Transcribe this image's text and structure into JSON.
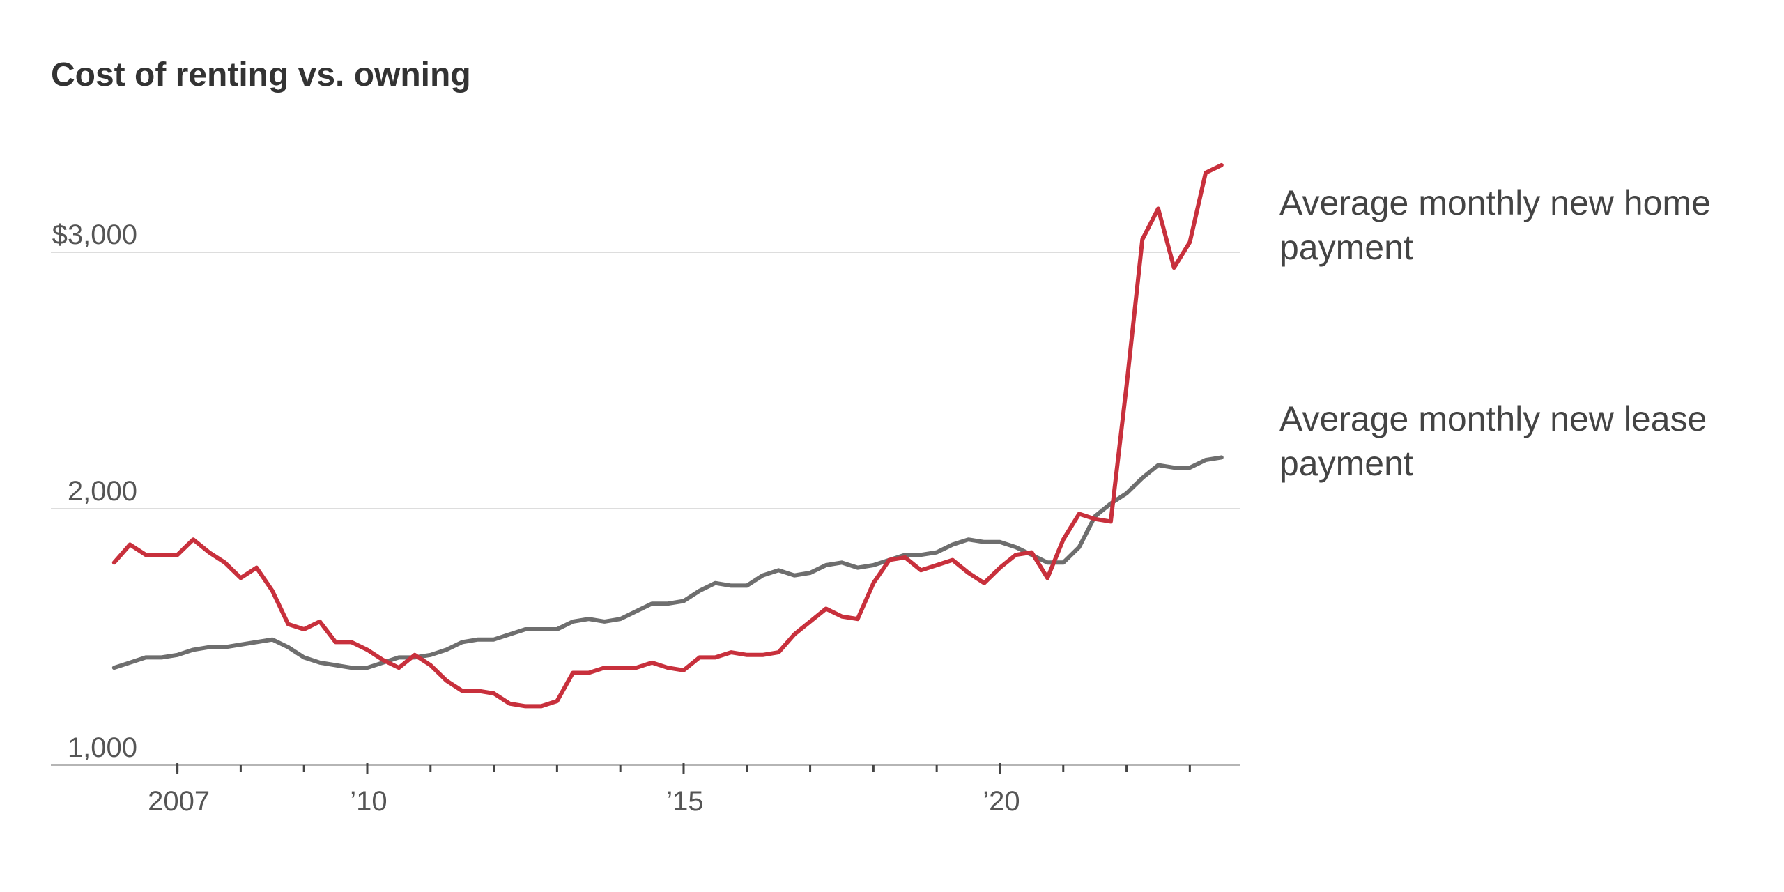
{
  "chart_data": {
    "type": "line",
    "title": "Cost of renting vs. owning",
    "xlabel": "",
    "ylabel": "",
    "xlim": [
      2005.0,
      2023.8
    ],
    "ylim": [
      1000,
      3400
    ],
    "y_ticks": [
      {
        "value": 3000,
        "label": "$3,000"
      },
      {
        "value": 2000,
        "label": "2,000"
      },
      {
        "value": 1000,
        "label": "1,000"
      }
    ],
    "x_tick_labels": [
      {
        "value": 2007,
        "label": "2007"
      },
      {
        "value": 2010,
        "label": "’10"
      },
      {
        "value": 2015,
        "label": "’15"
      },
      {
        "value": 2020,
        "label": "’20"
      }
    ],
    "x_minor_ticks": [
      2007,
      2008,
      2009,
      2010,
      2011,
      2012,
      2013,
      2014,
      2015,
      2016,
      2017,
      2018,
      2019,
      2020,
      2021,
      2022,
      2023
    ],
    "grid": true,
    "colors": {
      "home": "#c8303c",
      "lease": "#6e6e6e",
      "grid": "#dddddd",
      "axis": "#b5b5b5"
    },
    "series": [
      {
        "name": "Average monthly new home payment",
        "label_lines": [
          "Average monthly new home",
          "payment"
        ],
        "color": "#c8303c",
        "x": [
          2006.0,
          2006.25,
          2006.5,
          2006.75,
          2007.0,
          2007.25,
          2007.5,
          2007.75,
          2008.0,
          2008.25,
          2008.5,
          2008.75,
          2009.0,
          2009.25,
          2009.5,
          2009.75,
          2010.0,
          2010.25,
          2010.5,
          2010.75,
          2011.0,
          2011.25,
          2011.5,
          2011.75,
          2012.0,
          2012.25,
          2012.5,
          2012.75,
          2013.0,
          2013.25,
          2013.5,
          2013.75,
          2014.0,
          2014.25,
          2014.5,
          2014.75,
          2015.0,
          2015.25,
          2015.5,
          2015.75,
          2016.0,
          2016.25,
          2016.5,
          2016.75,
          2017.0,
          2017.25,
          2017.5,
          2017.75,
          2018.0,
          2018.25,
          2018.5,
          2018.75,
          2019.0,
          2019.25,
          2019.5,
          2019.75,
          2020.0,
          2020.25,
          2020.5,
          2020.75,
          2021.0,
          2021.25,
          2021.5,
          2021.75,
          2022.0,
          2022.25,
          2022.5,
          2022.75,
          2023.0,
          2023.25,
          2023.5
        ],
        "values": [
          1790,
          1860,
          1820,
          1820,
          1820,
          1880,
          1830,
          1790,
          1730,
          1770,
          1680,
          1550,
          1530,
          1560,
          1480,
          1480,
          1450,
          1410,
          1380,
          1430,
          1390,
          1330,
          1290,
          1290,
          1280,
          1240,
          1230,
          1230,
          1250,
          1360,
          1360,
          1380,
          1380,
          1380,
          1400,
          1380,
          1370,
          1420,
          1420,
          1440,
          1430,
          1430,
          1440,
          1510,
          1560,
          1610,
          1580,
          1570,
          1710,
          1800,
          1810,
          1760,
          1780,
          1800,
          1750,
          1710,
          1770,
          1820,
          1830,
          1730,
          1880,
          1980,
          1960,
          1950,
          2480,
          3050,
          3170,
          2940,
          3040,
          3310,
          3340
        ]
      },
      {
        "name": "Average monthly new lease payment",
        "label_lines": [
          "Average monthly new lease",
          "payment"
        ],
        "color": "#6e6e6e",
        "x": [
          2006.0,
          2006.25,
          2006.5,
          2006.75,
          2007.0,
          2007.25,
          2007.5,
          2007.75,
          2008.0,
          2008.25,
          2008.5,
          2008.75,
          2009.0,
          2009.25,
          2009.5,
          2009.75,
          2010.0,
          2010.25,
          2010.5,
          2010.75,
          2011.0,
          2011.25,
          2011.5,
          2011.75,
          2012.0,
          2012.25,
          2012.5,
          2012.75,
          2013.0,
          2013.25,
          2013.5,
          2013.75,
          2014.0,
          2014.25,
          2014.5,
          2014.75,
          2015.0,
          2015.25,
          2015.5,
          2015.75,
          2016.0,
          2016.25,
          2016.5,
          2016.75,
          2017.0,
          2017.25,
          2017.5,
          2017.75,
          2018.0,
          2018.25,
          2018.5,
          2018.75,
          2019.0,
          2019.25,
          2019.5,
          2019.75,
          2020.0,
          2020.25,
          2020.5,
          2020.75,
          2021.0,
          2021.25,
          2021.5,
          2021.75,
          2022.0,
          2022.25,
          2022.5,
          2022.75,
          2023.0,
          2023.25,
          2023.5
        ],
        "values": [
          1380,
          1400,
          1420,
          1420,
          1430,
          1450,
          1460,
          1460,
          1470,
          1480,
          1490,
          1460,
          1420,
          1400,
          1390,
          1380,
          1380,
          1400,
          1420,
          1420,
          1430,
          1450,
          1480,
          1490,
          1490,
          1510,
          1530,
          1530,
          1530,
          1560,
          1570,
          1560,
          1570,
          1600,
          1630,
          1630,
          1640,
          1680,
          1710,
          1700,
          1700,
          1740,
          1760,
          1740,
          1750,
          1780,
          1790,
          1770,
          1780,
          1800,
          1820,
          1820,
          1830,
          1860,
          1880,
          1870,
          1870,
          1850,
          1820,
          1790,
          1790,
          1850,
          1970,
          2020,
          2060,
          2120,
          2170,
          2160,
          2160,
          2190,
          2200
        ]
      }
    ]
  }
}
